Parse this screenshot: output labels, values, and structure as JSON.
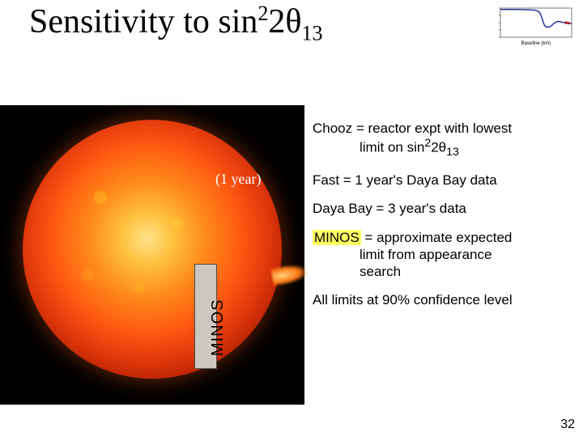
{
  "title": {
    "prefix": "Sensitivity to sin",
    "sup": "2",
    "mid": "2",
    "theta": "θ",
    "sub": "13"
  },
  "one_year_label": "(1 year)",
  "minos_vertical_label": "MINOS",
  "captions": {
    "chooz_a": "Chooz = reactor expt with lowest",
    "chooz_b": "limit on sin",
    "chooz_sup": "2",
    "chooz_mid": "2",
    "chooz_theta": "θ",
    "chooz_sub": "13",
    "fast": "Fast = 1 year's Daya Bay data",
    "dayabay": "Daya Bay = 3 year's data",
    "minos_hl": "MINOS",
    "minos_rest_a": " = approximate  expected",
    "minos_rest_b": "limit from appearance",
    "minos_rest_c": "search",
    "cl": "All limits at 90% confidence level"
  },
  "minichart": {
    "bg": "#ffffff",
    "axis_color": "#404040",
    "curve_color": "#1a2a9a",
    "marker_color": "#b01020",
    "xlabel": "Baseline (km)",
    "xlabel_fontsize": 6,
    "ylim": [
      0,
      1.05
    ],
    "points": [
      [
        0.0,
        1.0
      ],
      [
        0.2,
        1.0
      ],
      [
        0.4,
        0.99
      ],
      [
        0.5,
        0.97
      ],
      [
        0.55,
        0.9
      ],
      [
        0.58,
        0.72
      ],
      [
        0.6,
        0.55
      ],
      [
        0.62,
        0.42
      ],
      [
        0.65,
        0.36
      ],
      [
        0.7,
        0.38
      ],
      [
        0.75,
        0.5
      ],
      [
        0.8,
        0.57
      ],
      [
        0.85,
        0.55
      ],
      [
        0.9,
        0.52
      ],
      [
        0.95,
        0.5
      ],
      [
        1.0,
        0.5
      ]
    ],
    "ytick_xs": [
      0.02,
      0.02,
      0.02,
      0.02,
      0.02
    ]
  },
  "page_number": "32"
}
